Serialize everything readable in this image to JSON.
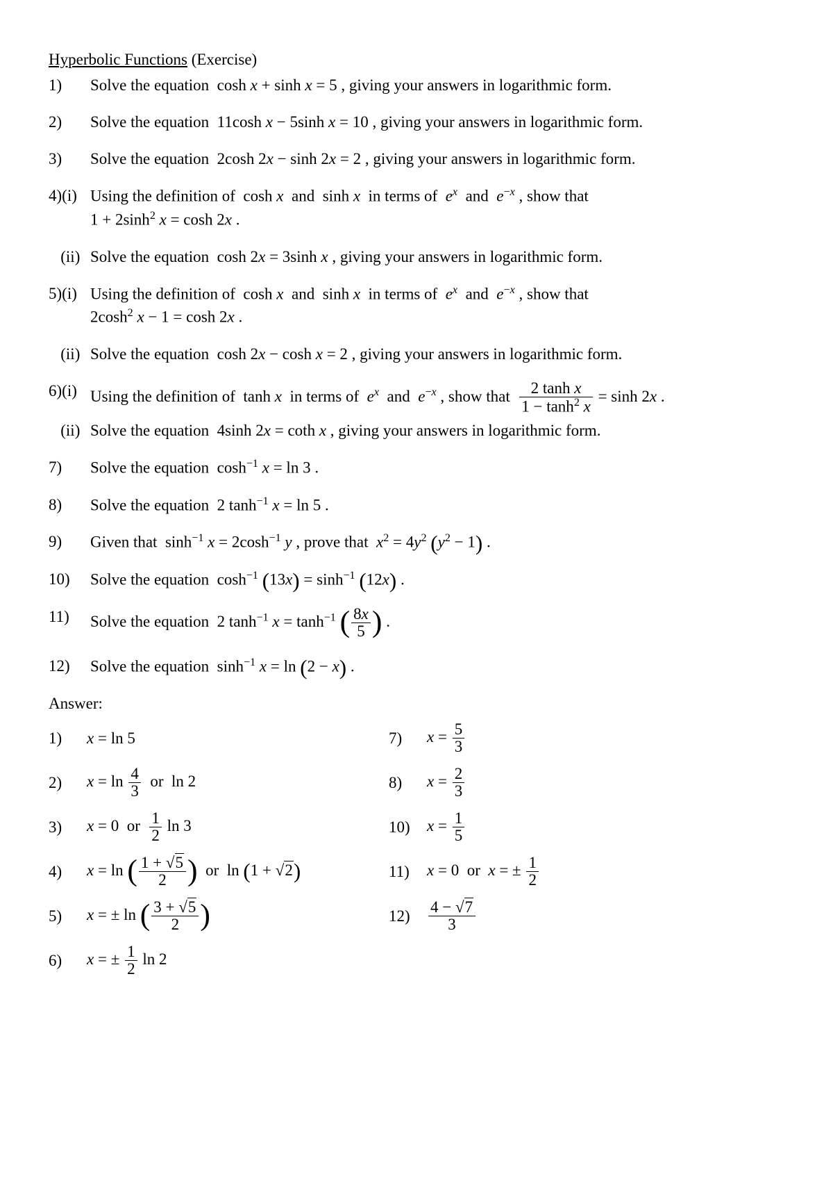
{
  "doc": {
    "title_underlined": "Hyperbolic Functions",
    "title_rest": " (Exercise)",
    "answer_heading": "Answer:",
    "font_family": "Times New Roman",
    "text_color": "#000000",
    "bg_color": "#ffffff"
  },
  "problems": [
    {
      "num": "1)",
      "html": "Solve the equation &nbsp;cosh <span class='ital'>x</span> + sinh <span class='ital'>x</span> = 5 , giving your answers in logarithmic form."
    },
    {
      "num": "2)",
      "html": "Solve the equation &nbsp;11cosh <span class='ital'>x</span> − 5sinh <span class='ital'>x</span> = 10 , giving your answers in logarithmic form."
    },
    {
      "num": "3)",
      "html": "Solve the equation &nbsp;2cosh 2<span class='ital'>x</span> − sinh 2<span class='ital'>x</span> = 2 , giving your answers in logarithmic form."
    },
    {
      "num": "4)(i)",
      "html": "Using the definition of &nbsp;cosh <span class='ital'>x</span>&nbsp; and &nbsp;sinh <span class='ital'>x</span>&nbsp; in terms of &nbsp;<span class='ital'>e</span><span class='sup ital'>x</span>&nbsp; and &nbsp;<span class='ital'>e</span><span class='sup'>−<span class='ital'>x</span></span> , show that",
      "extra": "1 + 2sinh<span class='sup'>2</span> <span class='ital'>x</span> = cosh 2<span class='ital'>x</span> ."
    },
    {
      "num": "&nbsp;&nbsp;&nbsp;(ii)",
      "html": "Solve the equation &nbsp;cosh 2<span class='ital'>x</span> = 3sinh <span class='ital'>x</span> , giving your answers in logarithmic form."
    },
    {
      "num": "5)(i)",
      "html": "Using the definition of &nbsp;cosh <span class='ital'>x</span>&nbsp; and &nbsp;sinh <span class='ital'>x</span>&nbsp; in terms of &nbsp;<span class='ital'>e</span><span class='sup ital'>x</span>&nbsp; and &nbsp;<span class='ital'>e</span><span class='sup'>−<span class='ital'>x</span></span> , show that",
      "extra": "2cosh<span class='sup'>2</span> <span class='ital'>x</span> − 1 = cosh 2<span class='ital'>x</span> ."
    },
    {
      "num": "&nbsp;&nbsp;&nbsp;(ii)",
      "html": "Solve the equation &nbsp;cosh 2<span class='ital'>x</span> − cosh <span class='ital'>x</span> = 2 , giving your answers in logarithmic form."
    },
    {
      "num": "6)(i)",
      "html": "Using the definition of &nbsp;tanh <span class='ital'>x</span>&nbsp; in terms of &nbsp;<span class='ital'>e</span><span class='sup ital'>x</span>&nbsp; and &nbsp;<span class='ital'>e</span><span class='sup'>−<span class='ital'>x</span></span> , show that &nbsp;<span class='frac'><span class='num'>2 tanh <span class='ital'>x</span></span><span class='den'>1 − tanh<span class='sup'>2</span> <span class='ital'>x</span></span></span> = sinh 2<span class='ital'>x</span> .",
      "tight": true
    },
    {
      "num": "&nbsp;&nbsp;&nbsp;(ii)",
      "html": "Solve the equation &nbsp;4sinh 2<span class='ital'>x</span> = coth <span class='ital'>x</span> , giving your answers in logarithmic form."
    },
    {
      "num": "7)",
      "html": "Solve the equation &nbsp;cosh<span class='sup'>−1</span> <span class='ital'>x</span> = ln 3 ."
    },
    {
      "num": "8)",
      "html": "Solve the equation &nbsp;2 tanh<span class='sup'>−1</span> <span class='ital'>x</span> = ln 5 ."
    },
    {
      "num": "9)",
      "html": "Given that &nbsp;sinh<span class='sup'>−1</span> <span class='ital'>x</span> = 2cosh<span class='sup'>−1</span> <span class='ital'>y</span> , prove that &nbsp;<span class='ital'>x</span><span class='sup'>2</span> = 4<span class='ital'>y</span><span class='sup'>2</span> <span class='medparen'>(</span><span class='ital'>y</span><span class='sup'>2</span> − 1<span class='medparen'>)</span> ."
    },
    {
      "num": "10)",
      "html": "Solve the equation &nbsp;cosh<span class='sup'>−1</span> <span class='medparen'>(</span>13<span class='ital'>x</span><span class='medparen'>)</span> = sinh<span class='sup'>−1</span> <span class='medparen'>(</span>12<span class='ital'>x</span><span class='medparen'>)</span> ."
    },
    {
      "num": "11)",
      "html": "Solve the equation &nbsp;2 tanh<span class='sup'>−1</span> <span class='ital'>x</span> = tanh<span class='sup'>−1</span> <span class='bigparen'>(</span><span class='frac'><span class='num'>8<span class='ital'>x</span></span><span class='den'>5</span></span><span class='bigparen'>)</span> ."
    },
    {
      "num": "12)",
      "html": "Solve the equation &nbsp;sinh<span class='sup'>−1</span> <span class='ital'>x</span> = ln <span class='medparen'>(</span>2 − <span class='ital'>x</span><span class='medparen'>)</span> ."
    }
  ],
  "answers_left": [
    {
      "num": "1)",
      "html": "<span class='ital'>x</span> = ln 5"
    },
    {
      "num": "2)",
      "html": "<span class='ital'>x</span> = ln <span class='frac'><span class='num'>4</span><span class='den'>3</span></span>&nbsp;&nbsp;or&nbsp;&nbsp;ln 2"
    },
    {
      "num": "3)",
      "html": "<span class='ital'>x</span> = 0 &nbsp;or &nbsp;<span class='frac'><span class='num'>1</span><span class='den'>2</span></span> ln 3"
    },
    {
      "num": "4)",
      "html": "<span class='ital'>x</span> = ln <span class='bigparen'>(</span><span class='frac'><span class='num'>1 + <span class='sqrt'><span class='rad'>5</span></span></span><span class='den'>2</span></span><span class='bigparen'>)</span>&nbsp;&nbsp;or&nbsp;&nbsp;ln <span class='medparen'>(</span>1 + <span class='sqrt'><span class='rad'>2</span></span><span class='medparen'>)</span>"
    },
    {
      "num": "5)",
      "html": "<span class='ital'>x</span> = ± ln <span class='bigparen'>(</span><span class='frac'><span class='num'>3 + <span class='sqrt'><span class='rad'>5</span></span></span><span class='den'>2</span></span><span class='bigparen'>)</span>"
    },
    {
      "num": "6)",
      "html": "<span class='ital'>x</span> = ± <span class='frac'><span class='num'>1</span><span class='den'>2</span></span> ln 2"
    }
  ],
  "answers_right": [
    {
      "num": "7)",
      "html": "<span class='ital'>x</span> = <span class='frac'><span class='num'>5</span><span class='den'>3</span></span>"
    },
    {
      "num": "8)",
      "html": "<span class='ital'>x</span> = <span class='frac'><span class='num'>2</span><span class='den'>3</span></span>"
    },
    {
      "num": "10)",
      "html": "<span class='ital'>x</span> = <span class='frac'><span class='num'>1</span><span class='den'>5</span></span>"
    },
    {
      "num": "11)",
      "html": "<span class='ital'>x</span> = 0 &nbsp;or &nbsp;<span class='ital'>x</span> = ± <span class='frac'><span class='num'>1</span><span class='den'>2</span></span>"
    },
    {
      "num": "12)",
      "html": "<span class='frac'><span class='num'>4 − <span class='sqrt'><span class='rad'>7</span></span></span><span class='den'>3</span></span>"
    }
  ]
}
